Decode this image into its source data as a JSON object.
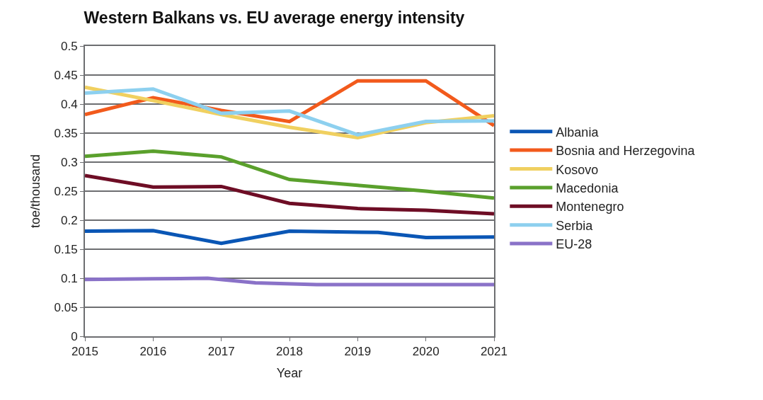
{
  "chart_data": {
    "type": "line",
    "title": "Western Balkans vs. EU average energy intensity",
    "xlabel": "Year",
    "ylabel": "toe/thousand",
    "x": [
      2015,
      2016,
      2017,
      2018,
      2019,
      2020,
      2021
    ],
    "xlim": [
      2015,
      2021
    ],
    "xticks": [
      2015,
      2016,
      2017,
      2018,
      2019,
      2020,
      2021
    ],
    "ylim": [
      0,
      0.5
    ],
    "yticks": [
      0,
      0.05,
      0.1,
      0.15,
      0.2,
      0.25,
      0.3,
      0.35,
      0.4,
      0.45,
      0.5
    ],
    "grid": "y",
    "legend": "right",
    "marker": "none",
    "line_style": "solid",
    "series": [
      {
        "name": "Albania",
        "color": "#0a56b5",
        "x": [
          2015,
          2016,
          2017,
          2018,
          2019.3,
          2020,
          2021
        ],
        "values": [
          0.181,
          0.182,
          0.16,
          0.181,
          0.179,
          0.17,
          0.171
        ]
      },
      {
        "name": "Bosnia and Herzegovina",
        "color": "#f25a1c",
        "values": [
          0.382,
          0.411,
          0.389,
          0.37,
          0.44,
          0.44,
          0.363
        ]
      },
      {
        "name": "Kosovo",
        "color": "#f0d060",
        "values": [
          0.429,
          0.406,
          0.382,
          0.36,
          0.342,
          0.368,
          0.38
        ]
      },
      {
        "name": "Macedonia",
        "color": "#5aa02c",
        "values": [
          0.31,
          0.319,
          0.309,
          0.27,
          0.26,
          0.25,
          0.238
        ]
      },
      {
        "name": "Montenegro",
        "color": "#6e0d25",
        "values": [
          0.277,
          0.257,
          0.258,
          0.229,
          0.22,
          0.217,
          0.211
        ]
      },
      {
        "name": "Serbia",
        "color": "#8dd0ef",
        "values": [
          0.419,
          0.426,
          0.384,
          0.388,
          0.347,
          0.37,
          0.371
        ]
      },
      {
        "name": "EU-28",
        "color": "#8a72c8",
        "x": [
          2015,
          2016,
          2016.8,
          2017.5,
          2018.4,
          2021
        ],
        "values": [
          0.098,
          0.099,
          0.1,
          0.092,
          0.089,
          0.089
        ]
      }
    ]
  }
}
